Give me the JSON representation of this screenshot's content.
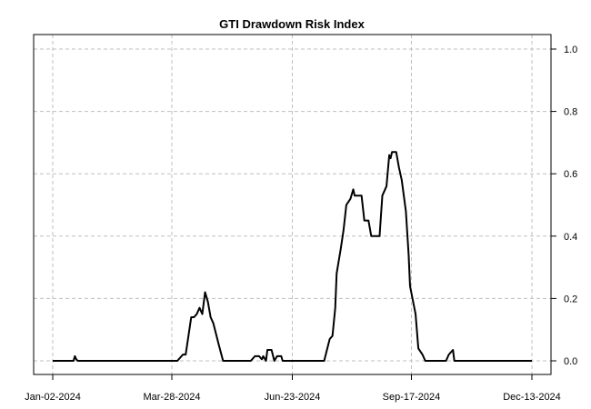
{
  "chart_data": {
    "type": "line",
    "title": "GTI Drawdown Risk Index",
    "xlabel": "",
    "ylabel": "",
    "x_axis_type": "date",
    "xlim": [
      "2024-01-02",
      "2024-12-13"
    ],
    "ylim": [
      -0.04,
      1.04
    ],
    "y_axis_position": "right",
    "x_ticks": [
      "Jan-02-2024",
      "Mar-28-2024",
      "Jun-23-2024",
      "Sep-17-2024",
      "Dec-13-2024"
    ],
    "x_tick_dates": [
      "2024-01-02",
      "2024-03-28",
      "2024-06-23",
      "2024-09-17",
      "2024-12-13"
    ],
    "y_ticks": [
      "0.0",
      "0.2",
      "0.4",
      "0.6",
      "0.8",
      "1.0"
    ],
    "y_tick_values": [
      0.0,
      0.2,
      0.4,
      0.6,
      0.8,
      1.0
    ],
    "grid": true,
    "series": [
      {
        "color": "#000000",
        "points": [
          [
            "2024-01-02",
            0.0
          ],
          [
            "2024-01-17",
            0.0
          ],
          [
            "2024-01-18",
            0.015
          ],
          [
            "2024-01-19",
            0.005
          ],
          [
            "2024-01-20",
            0.0
          ],
          [
            "2024-04-01",
            0.0
          ],
          [
            "2024-04-05",
            0.02
          ],
          [
            "2024-04-07",
            0.02
          ],
          [
            "2024-04-09",
            0.08
          ],
          [
            "2024-04-11",
            0.14
          ],
          [
            "2024-04-13",
            0.14
          ],
          [
            "2024-04-15",
            0.15
          ],
          [
            "2024-04-17",
            0.17
          ],
          [
            "2024-04-19",
            0.15
          ],
          [
            "2024-04-21",
            0.22
          ],
          [
            "2024-04-23",
            0.19
          ],
          [
            "2024-04-25",
            0.14
          ],
          [
            "2024-04-27",
            0.12
          ],
          [
            "2024-05-01",
            0.05
          ],
          [
            "2024-05-04",
            0.0
          ],
          [
            "2024-05-24",
            0.0
          ],
          [
            "2024-05-27",
            0.015
          ],
          [
            "2024-05-30",
            0.015
          ],
          [
            "2024-06-01",
            0.005
          ],
          [
            "2024-06-02",
            0.015
          ],
          [
            "2024-06-04",
            0.0
          ],
          [
            "2024-06-05",
            0.035
          ],
          [
            "2024-06-08",
            0.035
          ],
          [
            "2024-06-10",
            0.0
          ],
          [
            "2024-06-12",
            0.015
          ],
          [
            "2024-06-15",
            0.015
          ],
          [
            "2024-06-16",
            0.0
          ],
          [
            "2024-07-16",
            0.0
          ],
          [
            "2024-07-20",
            0.07
          ],
          [
            "2024-07-22",
            0.08
          ],
          [
            "2024-07-24",
            0.17
          ],
          [
            "2024-07-25",
            0.28
          ],
          [
            "2024-07-28",
            0.36
          ],
          [
            "2024-07-30",
            0.42
          ],
          [
            "2024-08-01",
            0.5
          ],
          [
            "2024-08-04",
            0.52
          ],
          [
            "2024-08-06",
            0.55
          ],
          [
            "2024-08-07",
            0.53
          ],
          [
            "2024-08-12",
            0.53
          ],
          [
            "2024-08-14",
            0.45
          ],
          [
            "2024-08-17",
            0.45
          ],
          [
            "2024-08-19",
            0.4
          ],
          [
            "2024-08-25",
            0.4
          ],
          [
            "2024-08-27",
            0.53
          ],
          [
            "2024-08-30",
            0.56
          ],
          [
            "2024-09-01",
            0.66
          ],
          [
            "2024-09-02",
            0.65
          ],
          [
            "2024-09-03",
            0.67
          ],
          [
            "2024-09-06",
            0.67
          ],
          [
            "2024-09-08",
            0.62
          ],
          [
            "2024-09-10",
            0.58
          ],
          [
            "2024-09-13",
            0.48
          ],
          [
            "2024-09-15",
            0.34
          ],
          [
            "2024-09-16",
            0.24
          ],
          [
            "2024-09-20",
            0.15
          ],
          [
            "2024-09-22",
            0.04
          ],
          [
            "2024-09-25",
            0.02
          ],
          [
            "2024-09-27",
            0.0
          ],
          [
            "2024-10-12",
            0.0
          ],
          [
            "2024-10-14",
            0.02
          ],
          [
            "2024-10-17",
            0.035
          ],
          [
            "2024-10-18",
            0.0
          ],
          [
            "2024-12-13",
            0.0
          ]
        ]
      }
    ]
  }
}
